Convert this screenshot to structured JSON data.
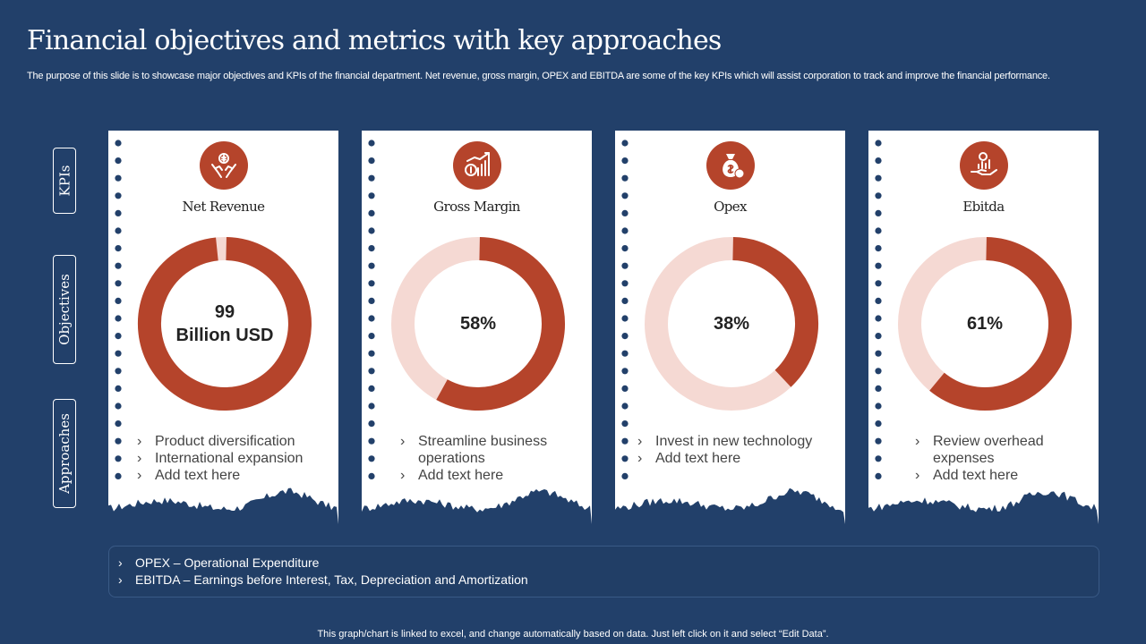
{
  "title": "Financial objectives and metrics with key approaches",
  "subtitle": "The purpose of this slide is to showcase major objectives and KPIs of the financial department. Net revenue, gross margin, OPEX and EBITDA  are some of the key KPIs which will assist corporation to track and improve the financial performance.",
  "side_labels": [
    "KPIs",
    "Objectives",
    "Approaches"
  ],
  "colors": {
    "background": "#22406a",
    "accent": "#b5442b",
    "accent_light": "#f5d9d3",
    "card": "#ffffff"
  },
  "chart_data": [
    {
      "type": "pie",
      "title": "Net Revenue",
      "icon": "hands-money-icon",
      "center_text": "99\nBillion  USD",
      "values": [
        99,
        1
      ],
      "approaches": [
        "Product diversification",
        "International  expansion",
        "Add text here"
      ]
    },
    {
      "type": "pie",
      "title": "Gross Margin",
      "icon": "growth-chart-icon",
      "center_text": "58%",
      "values": [
        58,
        42
      ],
      "approaches": [
        "Streamline business operations",
        "Add text here"
      ]
    },
    {
      "type": "pie",
      "title": "Opex",
      "icon": "money-bag-icon",
      "center_text": "38%",
      "values": [
        38,
        62
      ],
      "approaches": [
        "Invest  in new technology",
        "Add text here"
      ]
    },
    {
      "type": "pie",
      "title": "Ebitda",
      "icon": "hand-chart-icon",
      "center_text": "61%",
      "values": [
        61,
        39
      ],
      "approaches": [
        "Review overhead expenses",
        "Add text here"
      ]
    }
  ],
  "definitions": [
    "OPEX – Operational Expenditure",
    "EBITDA – Earnings before Interest, Tax, Depreciation and Amortization"
  ],
  "footer_note": "This graph/chart is linked to excel,  and change automatically based on data. Just left click on it and select “Edit Data”."
}
